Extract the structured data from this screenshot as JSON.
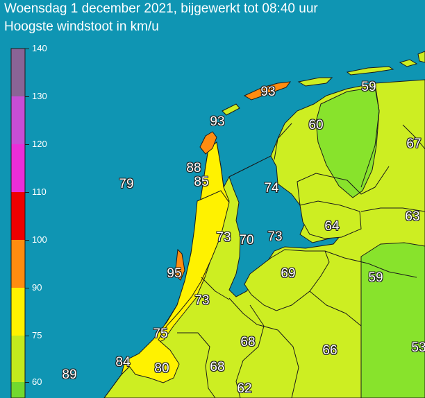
{
  "title": "Woensdag 1 december 2021, bijgewerkt tot 08:40 uur",
  "subtitle": "Hoogste windstoot in km/u",
  "colors": {
    "sea": "#0f95b3",
    "band_60_75": "#88e32c",
    "band_75_90": "#cdee22",
    "band_90_100": "#fff200",
    "band_100_110": "#ff8c10",
    "band_110_120": "#ff0000",
    "band_120_130": "#e62ed9",
    "band_130_140": "#b45ad8",
    "band_140_plus": "#8a5c8e",
    "land_low": "#57e02e"
  },
  "legend": {
    "ticks": [
      "140",
      "130",
      "120",
      "110",
      "100",
      "90",
      "75",
      "60"
    ],
    "bands": [
      {
        "color": "#8a6496",
        "from": 130,
        "to": 140
      },
      {
        "color": "#c64ed6",
        "from": 120,
        "to": 130
      },
      {
        "color": "#ea2ed8",
        "from": 110,
        "to": 120
      },
      {
        "color": "#ee0000",
        "from": 100,
        "to": 110
      },
      {
        "color": "#ff8c10",
        "from": 90,
        "to": 100
      },
      {
        "color": "#fff200",
        "from": 75,
        "to": 90
      },
      {
        "color": "#c3ea1e",
        "from": 60,
        "to": 75
      },
      {
        "color": "#72d92e",
        "from": 50,
        "to": 60
      }
    ]
  },
  "values": [
    "93",
    "59",
    "93",
    "60",
    "67",
    "88",
    "85",
    "79",
    "74",
    "63",
    "64",
    "73",
    "70",
    "73",
    "95",
    "69",
    "59",
    "73",
    "75",
    "68",
    "66",
    "53",
    "84",
    "80",
    "68",
    "89",
    "62"
  ]
}
